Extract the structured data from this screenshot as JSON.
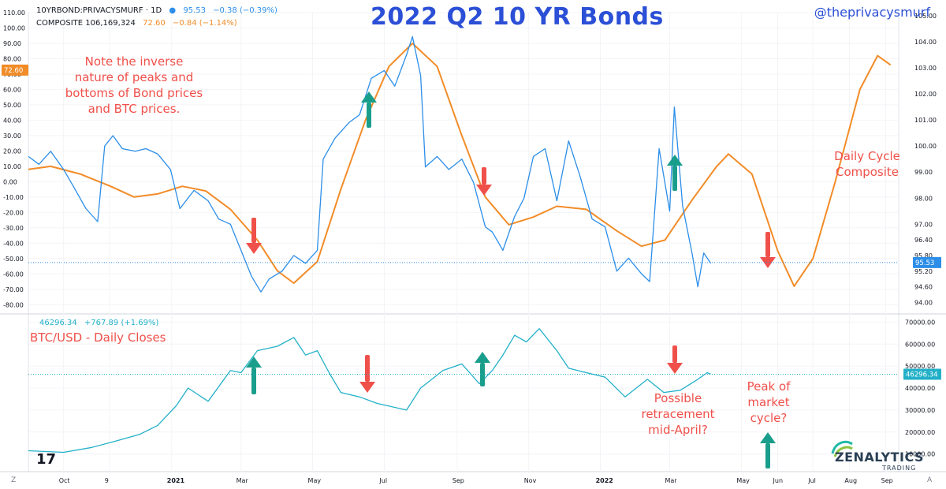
{
  "title": "2022 Q2 10 YR Bonds",
  "handle": "@theprivacysmurf",
  "header": {
    "symbol": "10YRBOND:PRIVACYSMURF · 1D",
    "last": "95.53",
    "change": "−0.38 (−0.39%)",
    "composite_label": "COMPOSITE 106,169,324",
    "composite_value": "72.60",
    "composite_change": "−0.84 (−1.14%)",
    "btc_last": "46296.34",
    "btc_change": "+767.89 (+1.69%)"
  },
  "colors": {
    "bond": "#2c8ee8",
    "composite": "#f28c28",
    "btc": "#22b0c8",
    "note": "#f0504a",
    "title": "#2b4fd6",
    "up_arrow": "#1a9e8c",
    "down_arrow": "#f0504a"
  },
  "annotations": {
    "note_top": [
      "Note the inverse",
      "nature of peaks and",
      "bottoms of Bond prices",
      "and BTC prices."
    ],
    "daily_cycle": [
      "Daily Cycle",
      "Composite"
    ],
    "btc_label": "BTC/USD - Daily Closes",
    "retracement": [
      "Possible",
      "retracement",
      "mid-April?"
    ],
    "peak": [
      "Peak of",
      "market",
      "cycle?"
    ]
  },
  "brand": {
    "tv": "17",
    "zen_name": "ZENALYTICS",
    "zen_sub": "TRADING",
    "corner_left": "Z",
    "corner_right": "A"
  },
  "chart_data": [
    {
      "type": "line",
      "title": "2022 Q2 10 YR Bonds",
      "pane": "upper",
      "x_ticks": [
        "Oct",
        "9",
        "2021",
        "Mar",
        "May",
        "Jul",
        "Sep",
        "Nov",
        "2022",
        "Mar",
        "May",
        "Jun",
        "Jul",
        "Aug",
        "Sep"
      ],
      "left_axis": {
        "ylim": [
          -85,
          110
        ],
        "ticks": [
          "110.00",
          "100.00",
          "90.00",
          "80.00",
          "70.00",
          "60.00",
          "50.00",
          "40.00",
          "30.00",
          "20.00",
          "10.00",
          "0.00",
          "-10.00",
          "-20.00",
          "-30.00",
          "-40.00",
          "-50.00",
          "-60.00",
          "-70.00",
          "-80.00"
        ]
      },
      "right_axis": {
        "ylim": [
          93.62,
          105.12
        ],
        "ticks": [
          "105.00",
          "104.00",
          "103.00",
          "102.00",
          "101.00",
          "100.00",
          "99.00",
          "98.00",
          "97.00",
          "96.40",
          "95.80",
          "95.20",
          "94.60",
          "94.00"
        ]
      },
      "series": [
        {
          "name": "10YRBOND:PRIVACYSMURF",
          "axis": "right",
          "points": [
            [
              "2020-09-01",
              99.6
            ],
            [
              "2020-09-10",
              99.3
            ],
            [
              "2020-09-20",
              99.8
            ],
            [
              "2020-10-01",
              99.1
            ],
            [
              "2020-10-10",
              98.4
            ],
            [
              "2020-10-20",
              97.6
            ],
            [
              "2020-10-30",
              97.1
            ],
            [
              "2020-11-05",
              100.0
            ],
            [
              "2020-11-12",
              100.4
            ],
            [
              "2020-11-20",
              99.9
            ],
            [
              "2020-12-01",
              99.8
            ],
            [
              "2020-12-10",
              99.9
            ],
            [
              "2020-12-20",
              99.7
            ],
            [
              "2020-12-31",
              99.1
            ],
            [
              "2021-01-08",
              97.6
            ],
            [
              "2021-01-20",
              98.3
            ],
            [
              "2021-02-01",
              97.9
            ],
            [
              "2021-02-10",
              97.2
            ],
            [
              "2021-02-20",
              97.0
            ],
            [
              "2021-03-01",
              96.0
            ],
            [
              "2021-03-10",
              95.0
            ],
            [
              "2021-03-18",
              94.4
            ],
            [
              "2021-03-25",
              94.9
            ],
            [
              "2021-04-05",
              95.2
            ],
            [
              "2021-04-15",
              95.8
            ],
            [
              "2021-04-25",
              95.5
            ],
            [
              "2021-05-05",
              96.0
            ],
            [
              "2021-05-10",
              99.5
            ],
            [
              "2021-05-20",
              100.3
            ],
            [
              "2021-06-01",
              100.9
            ],
            [
              "2021-06-10",
              101.2
            ],
            [
              "2021-06-20",
              102.6
            ],
            [
              "2021-07-01",
              102.9
            ],
            [
              "2021-07-10",
              102.3
            ],
            [
              "2021-07-20",
              103.5
            ],
            [
              "2021-07-25",
              104.2
            ],
            [
              "2021-08-01",
              102.7
            ],
            [
              "2021-08-05",
              99.2
            ],
            [
              "2021-08-15",
              99.6
            ],
            [
              "2021-08-25",
              99.1
            ],
            [
              "2021-09-05",
              99.5
            ],
            [
              "2021-09-15",
              98.6
            ],
            [
              "2021-09-25",
              96.9
            ],
            [
              "2021-10-01",
              96.7
            ],
            [
              "2021-10-10",
              96.0
            ],
            [
              "2021-10-20",
              97.3
            ],
            [
              "2021-10-28",
              98.0
            ],
            [
              "2021-11-05",
              99.6
            ],
            [
              "2021-11-15",
              99.9
            ],
            [
              "2021-11-25",
              97.9
            ],
            [
              "2021-12-05",
              100.2
            ],
            [
              "2021-12-15",
              98.8
            ],
            [
              "2021-12-25",
              97.2
            ],
            [
              "2022-01-05",
              96.9
            ],
            [
              "2022-01-15",
              95.2
            ],
            [
              "2022-01-25",
              95.7
            ],
            [
              "2022-02-05",
              95.1
            ],
            [
              "2022-02-12",
              94.8
            ],
            [
              "2022-02-20",
              99.9
            ],
            [
              "2022-03-01",
              97.5
            ],
            [
              "2022-03-05",
              101.5
            ],
            [
              "2022-03-12",
              97.7
            ],
            [
              "2022-03-20",
              95.9
            ],
            [
              "2022-03-25",
              94.6
            ],
            [
              "2022-03-30",
              95.9
            ],
            [
              "2022-04-05",
              95.5
            ]
          ]
        },
        {
          "name": "COMPOSITE",
          "axis": "left",
          "points": [
            [
              "2020-09-01",
              8
            ],
            [
              "2020-09-20",
              10
            ],
            [
              "2020-10-15",
              5
            ],
            [
              "2020-11-10",
              -3
            ],
            [
              "2020-11-30",
              -10
            ],
            [
              "2020-12-20",
              -8
            ],
            [
              "2021-01-10",
              -3
            ],
            [
              "2021-01-30",
              -6
            ],
            [
              "2021-02-20",
              -18
            ],
            [
              "2021-03-15",
              -38
            ],
            [
              "2021-04-01",
              -58
            ],
            [
              "2021-04-15",
              -66
            ],
            [
              "2021-05-05",
              -52
            ],
            [
              "2021-05-25",
              -5
            ],
            [
              "2021-06-15",
              40
            ],
            [
              "2021-07-05",
              75
            ],
            [
              "2021-07-25",
              90
            ],
            [
              "2021-08-15",
              75
            ],
            [
              "2021-09-05",
              30
            ],
            [
              "2021-09-25",
              -10
            ],
            [
              "2021-10-15",
              -28
            ],
            [
              "2021-11-05",
              -23
            ],
            [
              "2021-11-25",
              -16
            ],
            [
              "2021-12-20",
              -18
            ],
            [
              "2022-01-15",
              -32
            ],
            [
              "2022-02-05",
              -42
            ],
            [
              "2022-02-25",
              -38
            ],
            [
              "2022-03-20",
              -12
            ],
            [
              "2022-04-10",
              10
            ],
            [
              "2022-04-20",
              18
            ],
            [
              "2022-05-10",
              5
            ],
            [
              "2022-06-01",
              -45
            ],
            [
              "2022-06-15",
              -68
            ],
            [
              "2022-07-01",
              -50
            ],
            [
              "2022-07-20",
              0
            ],
            [
              "2022-08-10",
              60
            ],
            [
              "2022-08-25",
              82
            ],
            [
              "2022-09-05",
              76
            ]
          ]
        }
      ],
      "axis_markers": {
        "left": "72.60",
        "right": "95.53"
      },
      "legend_position": "top-left"
    },
    {
      "type": "line",
      "title": "BTC/USD - Daily Closes",
      "pane": "lower",
      "y_ticks": [
        "70000.00",
        "60000.00",
        "50000.00",
        "40000.00",
        "30000.00",
        "20000.00",
        "10000.00"
      ],
      "ylim": [
        2000,
        73000
      ],
      "axis_marker": "46296.34",
      "series": [
        {
          "name": "BTC/USD",
          "points": [
            [
              "2020-09-01",
              11500
            ],
            [
              "2020-10-01",
              10800
            ],
            [
              "2020-10-25",
              13000
            ],
            [
              "2020-11-15",
              16000
            ],
            [
              "2020-12-05",
              19000
            ],
            [
              "2020-12-20",
              23000
            ],
            [
              "2021-01-05",
              32000
            ],
            [
              "2021-01-15",
              40000
            ],
            [
              "2021-02-01",
              34000
            ],
            [
              "2021-02-20",
              48000
            ],
            [
              "2021-03-01",
              47000
            ],
            [
              "2021-03-15",
              57000
            ],
            [
              "2021-04-01",
              59000
            ],
            [
              "2021-04-15",
              63000
            ],
            [
              "2021-04-25",
              55000
            ],
            [
              "2021-05-05",
              57000
            ],
            [
              "2021-05-15",
              47000
            ],
            [
              "2021-05-25",
              38000
            ],
            [
              "2021-06-10",
              36000
            ],
            [
              "2021-06-25",
              33000
            ],
            [
              "2021-07-20",
              30000
            ],
            [
              "2021-08-01",
              40000
            ],
            [
              "2021-08-20",
              48000
            ],
            [
              "2021-09-05",
              51000
            ],
            [
              "2021-09-20",
              42000
            ],
            [
              "2021-10-01",
              48000
            ],
            [
              "2021-10-10",
              55000
            ],
            [
              "2021-10-20",
              64000
            ],
            [
              "2021-10-30",
              61000
            ],
            [
              "2021-11-10",
              67000
            ],
            [
              "2021-11-25",
              57000
            ],
            [
              "2021-12-05",
              49000
            ],
            [
              "2021-12-20",
              47000
            ],
            [
              "2022-01-05",
              45000
            ],
            [
              "2022-01-22",
              36000
            ],
            [
              "2022-02-10",
              44000
            ],
            [
              "2022-02-24",
              38000
            ],
            [
              "2022-03-10",
              39000
            ],
            [
              "2022-03-25",
              44000
            ],
            [
              "2022-04-02",
              47000
            ],
            [
              "2022-04-05",
              46296
            ]
          ]
        }
      ]
    }
  ]
}
